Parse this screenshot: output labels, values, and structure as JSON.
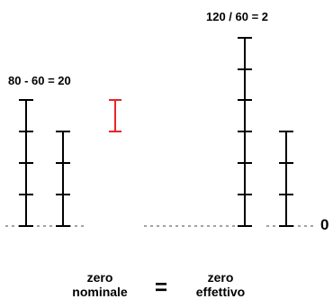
{
  "labels": {
    "difference": "80 - 60 = 20",
    "ratio": "120 / 60 = 2",
    "zero_axis": "0"
  },
  "caption": {
    "left_line1": "zero",
    "left_line2": "nominale",
    "equals": "=",
    "right_line1": "zero",
    "right_line2": "effettivo"
  },
  "colors": {
    "ruler": "#000000",
    "difference_marker": "#e8242a",
    "baseline": "#444444"
  },
  "rulers": {
    "left_tall_ticks": 4,
    "left_short_ticks": 3,
    "right_tall_ticks": 6,
    "right_short_ticks": 3
  }
}
